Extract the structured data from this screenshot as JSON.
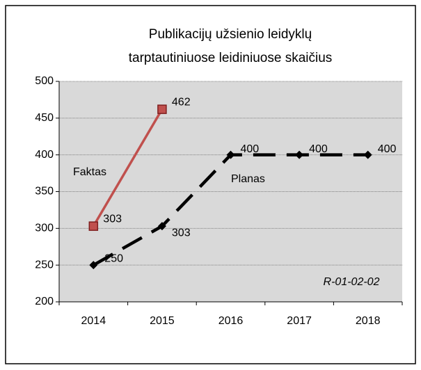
{
  "chart_data": {
    "type": "line",
    "title": [
      "Publikacijų užsienio leidyklų",
      "tarptautiniuose leidiniuose skaičius"
    ],
    "categories": [
      "2014",
      "2015",
      "2016",
      "2017",
      "2018"
    ],
    "series": [
      {
        "name": "Faktas",
        "color": "#c0504d",
        "values": [
          303,
          462,
          null,
          null,
          null
        ]
      },
      {
        "name": "Planas",
        "color": "#000000",
        "values": [
          250,
          303,
          400,
          400,
          400
        ]
      }
    ],
    "ylim": [
      200,
      500
    ],
    "yticks": [
      200,
      250,
      300,
      350,
      400,
      450,
      500
    ],
    "grid": true,
    "annotations": [
      "R-01-02-02"
    ]
  }
}
